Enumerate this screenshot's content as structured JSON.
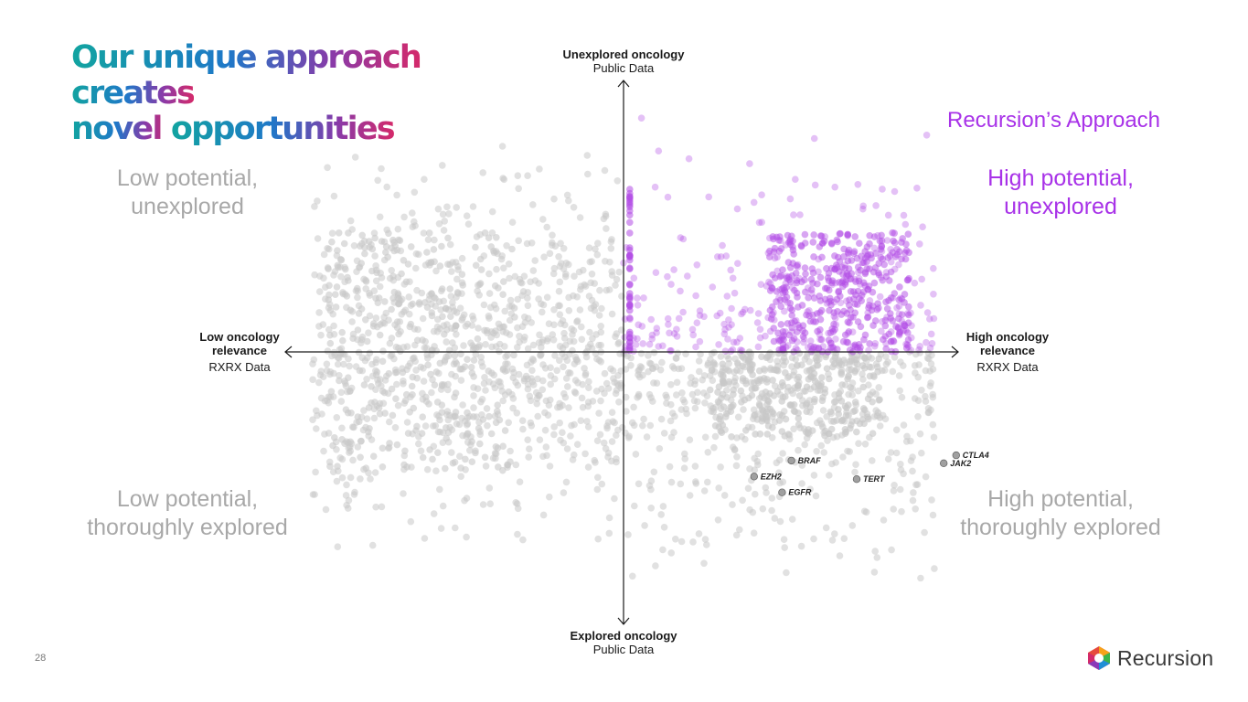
{
  "slide": {
    "title_line1_a": "Our unique approach ",
    "title_line1_b": "creates",
    "title_line2_a": "novel ",
    "title_line2_b": "opportunities",
    "page_number": "28",
    "logo_text": "Recursion",
    "approach_label": "Recursion’s Approach"
  },
  "quadrants": {
    "top_left": [
      "Low potential,",
      "unexplored"
    ],
    "top_right": [
      "High potential,",
      "unexplored"
    ],
    "bottom_left": [
      "Low potential,",
      "thoroughly explored"
    ],
    "bottom_right": [
      "High potential,",
      "thoroughly explored"
    ]
  },
  "axes": {
    "top": {
      "title": "Unexplored oncology",
      "sub": "Public Data"
    },
    "bottom": {
      "title": "Explored oncology",
      "sub": "Public Data"
    },
    "left": {
      "title_1": "Low oncology",
      "title_2": "relevance",
      "sub": "RXRX Data"
    },
    "right": {
      "title_1": "High oncology",
      "title_2": "relevance",
      "sub": "RXRX Data"
    }
  },
  "colors": {
    "gray_point": "#c8c8c8",
    "purple_point": "#b24ce6",
    "axis": "#1a1a1a",
    "gene_point": "#a0a0a0"
  },
  "chart_data": {
    "type": "scatter",
    "xlim": [
      -1,
      1
    ],
    "ylim": [
      -1,
      1
    ],
    "grid": false,
    "xlabel": "",
    "ylabel": "",
    "labeled_points": [
      {
        "label": "BRAF",
        "x": 0.54,
        "y": -0.41
      },
      {
        "label": "EZH2",
        "x": 0.42,
        "y": -0.47
      },
      {
        "label": "EGFR",
        "x": 0.51,
        "y": -0.53
      },
      {
        "label": "TERT",
        "x": 0.75,
        "y": -0.48
      },
      {
        "label": "CTLA4",
        "x": 1.07,
        "y": -0.39
      },
      {
        "label": "JAK2",
        "x": 1.03,
        "y": -0.42
      }
    ],
    "series": [
      {
        "group": "unexplored-high-relevance",
        "color": "#b24ce6",
        "density": "concentrated x 0.45–0.9, y 0–0.45"
      },
      {
        "group": "other",
        "color": "#c8c8c8",
        "density": "spread across all quadrants"
      }
    ]
  }
}
